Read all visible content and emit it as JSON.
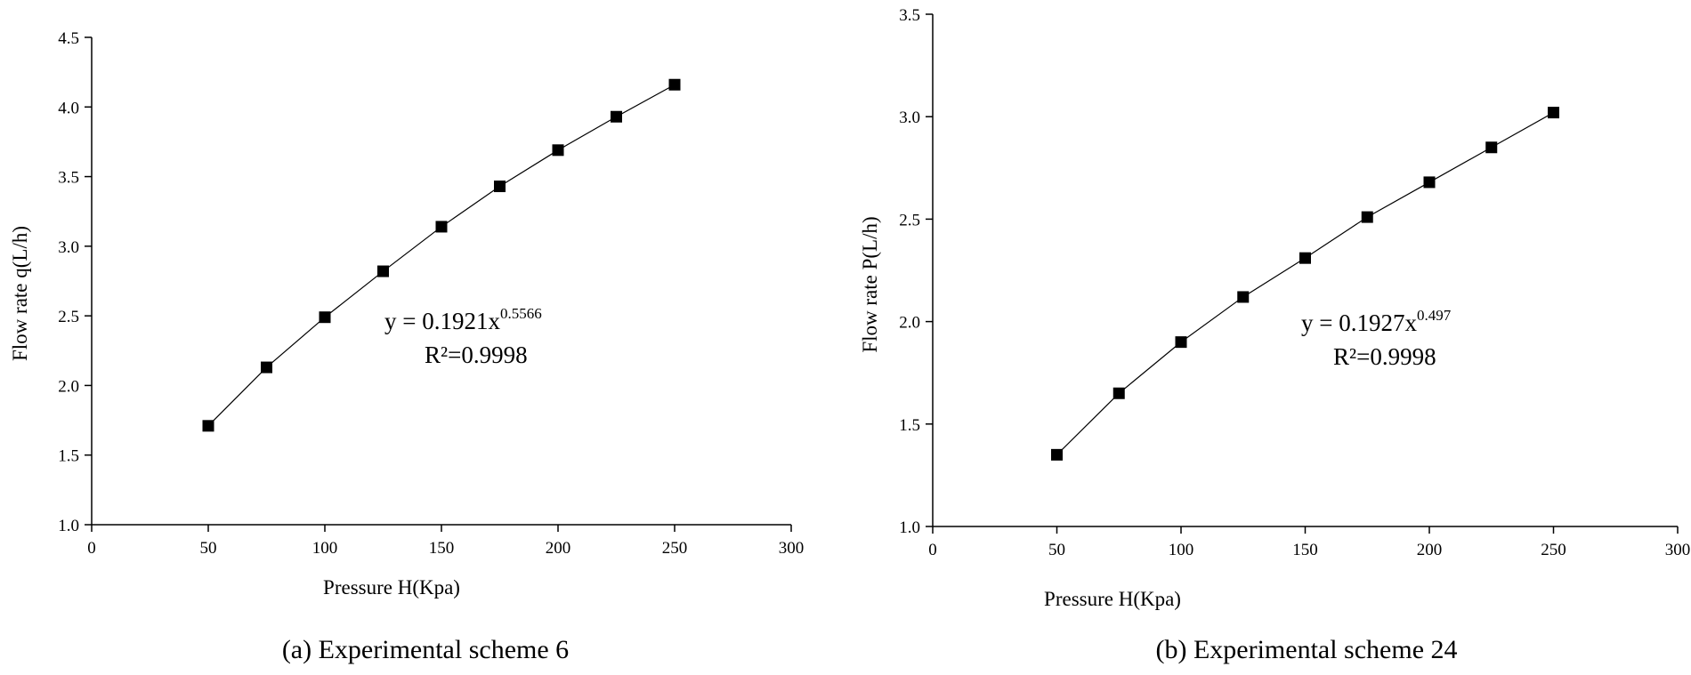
{
  "chart_data": [
    {
      "type": "scatter",
      "caption": "(a) Experimental scheme 6",
      "xlabel": "Pressure H(Kpa)",
      "ylabel": "Flow rate q(L/h)",
      "xlim": [
        0,
        300
      ],
      "ylim": [
        1.0,
        4.5
      ],
      "xticks": [
        "0",
        "50",
        "100",
        "150",
        "200",
        "250",
        "300"
      ],
      "yticks": [
        "1.0",
        "1.5",
        "2.0",
        "2.5",
        "3.0",
        "3.5",
        "4.0",
        "4.5"
      ],
      "grid": false,
      "series": [
        {
          "x": [
            50,
            75,
            100,
            125,
            150,
            175,
            200,
            225,
            250
          ],
          "y": [
            1.71,
            2.13,
            2.49,
            2.82,
            3.14,
            3.43,
            3.69,
            3.93,
            4.16
          ],
          "marker": "square",
          "line": true
        }
      ],
      "annotation": {
        "equation_base": "y = 0.1921x",
        "equation_exponent": "0.5566",
        "r_squared": "R²=0.9998"
      }
    },
    {
      "type": "scatter",
      "caption": "(b) Experimental scheme 24",
      "xlabel": "Pressure H(Kpa)",
      "ylabel": "Flow rate  P(L/h)",
      "xlim": [
        0,
        300
      ],
      "ylim": [
        1.0,
        3.5
      ],
      "xticks": [
        "0",
        "50",
        "100",
        "150",
        "200",
        "250",
        "300"
      ],
      "yticks": [
        "1.0",
        "1.5",
        "2.0",
        "2.5",
        "3.0",
        "3.5"
      ],
      "grid": false,
      "series": [
        {
          "x": [
            50,
            75,
            100,
            125,
            150,
            175,
            200,
            225,
            250
          ],
          "y": [
            1.35,
            1.65,
            1.9,
            2.12,
            2.31,
            2.51,
            2.68,
            2.85,
            3.02
          ],
          "marker": "square",
          "line": true
        }
      ],
      "annotation": {
        "equation_base": "y = 0.1927x",
        "equation_exponent": "0.497",
        "r_squared": "R²=0.9998"
      }
    }
  ]
}
